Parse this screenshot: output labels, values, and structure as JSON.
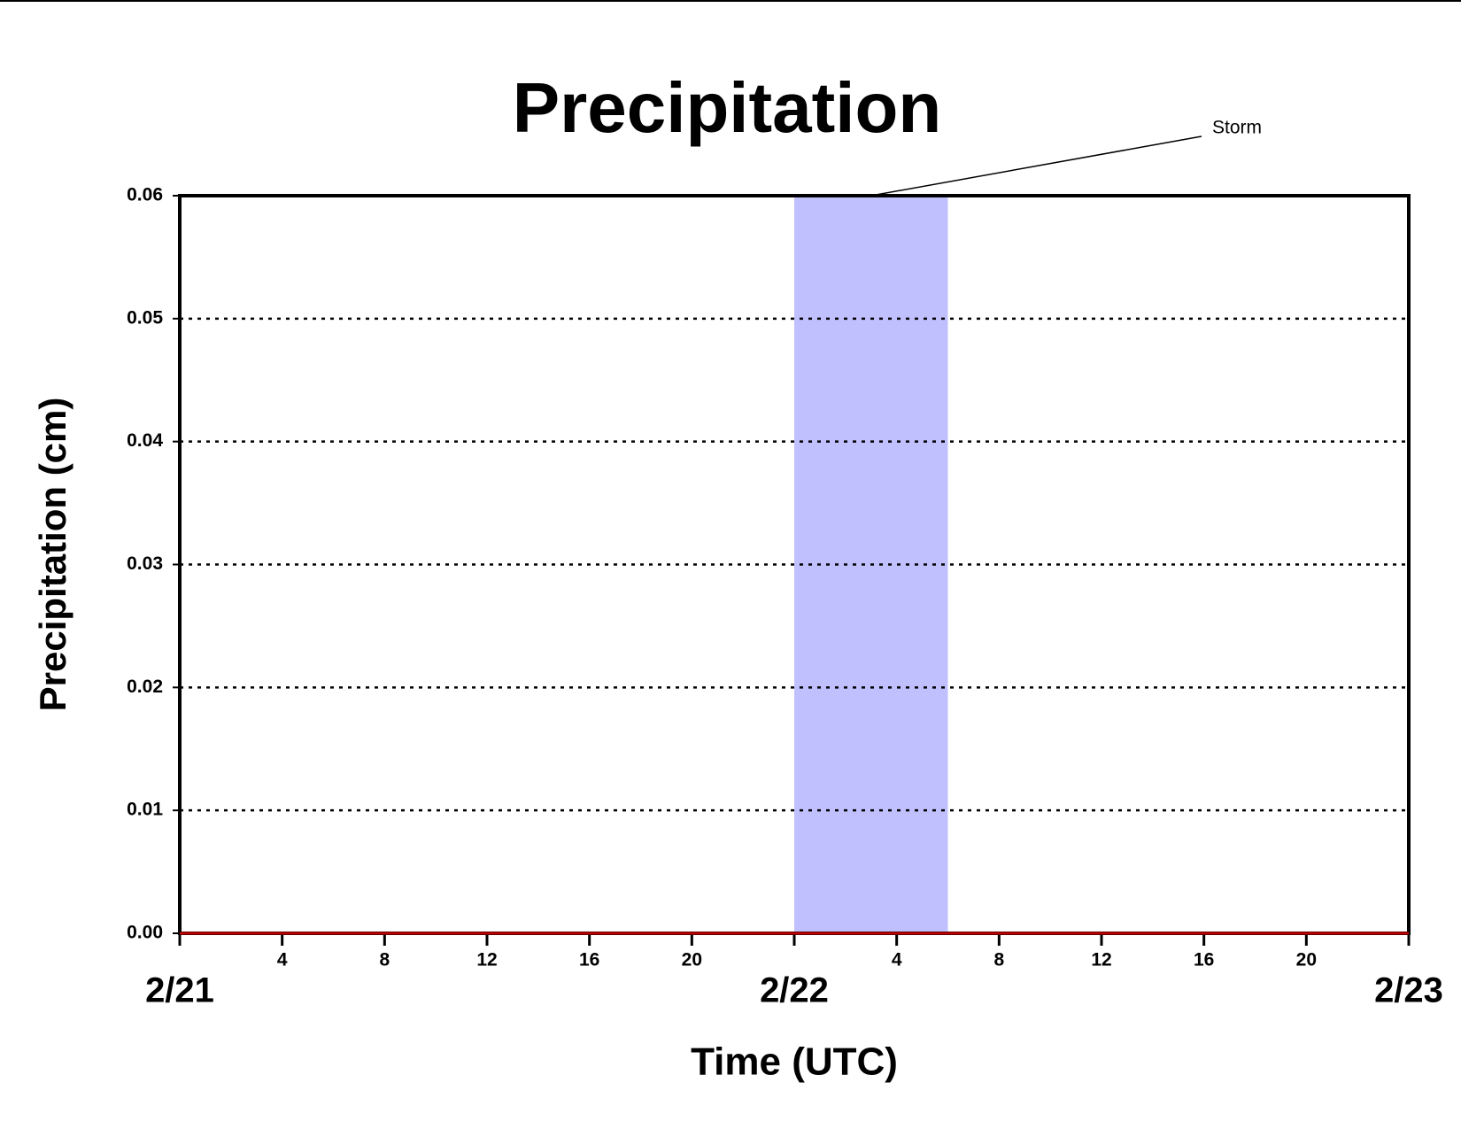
{
  "chart_data": {
    "type": "line",
    "title": "Precipitation",
    "x_label": "Time (UTC)",
    "y_label": "Precipitation (cm)",
    "x": [
      0,
      48
    ],
    "series": [
      {
        "name": "Precipitation",
        "color": "#c00000",
        "values": [
          0,
          0
        ]
      }
    ],
    "xlim": [
      0,
      48
    ],
    "xticks": [
      {
        "value": 0,
        "label": "2/21"
      },
      4,
      8,
      12,
      16,
      20,
      {
        "value": 24,
        "label": "2/22"
      },
      {
        "value": 28,
        "label": "4"
      },
      {
        "value": 32,
        "label": "8"
      },
      {
        "value": 36,
        "label": "12"
      },
      {
        "value": 40,
        "label": "16"
      },
      {
        "value": 44,
        "label": "20"
      },
      {
        "value": 48,
        "label": "2/23"
      }
    ],
    "ylim": [
      0,
      0.06
    ],
    "yticks": [
      {
        "value": 0,
        "label": "0.00"
      },
      0.01,
      0.02,
      0.03,
      0.04,
      0.05,
      0.06
    ],
    "grid": true,
    "shade": {
      "x": [
        24,
        30
      ],
      "color": "#c0c0ff",
      "label": "Storm"
    }
  }
}
